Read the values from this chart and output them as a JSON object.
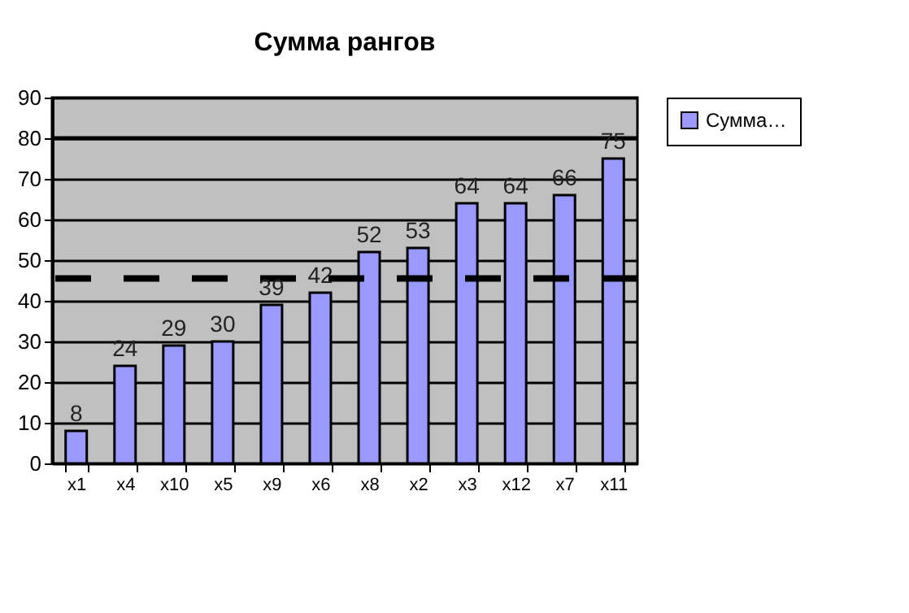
{
  "chart_data": {
    "type": "bar",
    "title": "Сумма рангов",
    "categories": [
      "x1",
      "x4",
      "x10",
      "x5",
      "x9",
      "x6",
      "x8",
      "x2",
      "x3",
      "x12",
      "x7",
      "x11"
    ],
    "series": [
      {
        "name": "Сумма…",
        "color": "#9999ff",
        "values": [
          8,
          24,
          29,
          30,
          39,
          42,
          52,
          53,
          64,
          64,
          66,
          75
        ]
      }
    ],
    "ylim": [
      0,
      90
    ],
    "yticks": [
      0,
      10,
      20,
      30,
      40,
      50,
      60,
      70,
      80,
      90
    ],
    "grid": "y",
    "legend": "right",
    "data_labels": true,
    "ref_lines": [
      {
        "axis": "y",
        "value": 80,
        "color": "#000000",
        "line_style": "solid"
      },
      {
        "axis": "y",
        "value": 45.5,
        "color": "#000000",
        "line_style": "dashed"
      }
    ]
  }
}
